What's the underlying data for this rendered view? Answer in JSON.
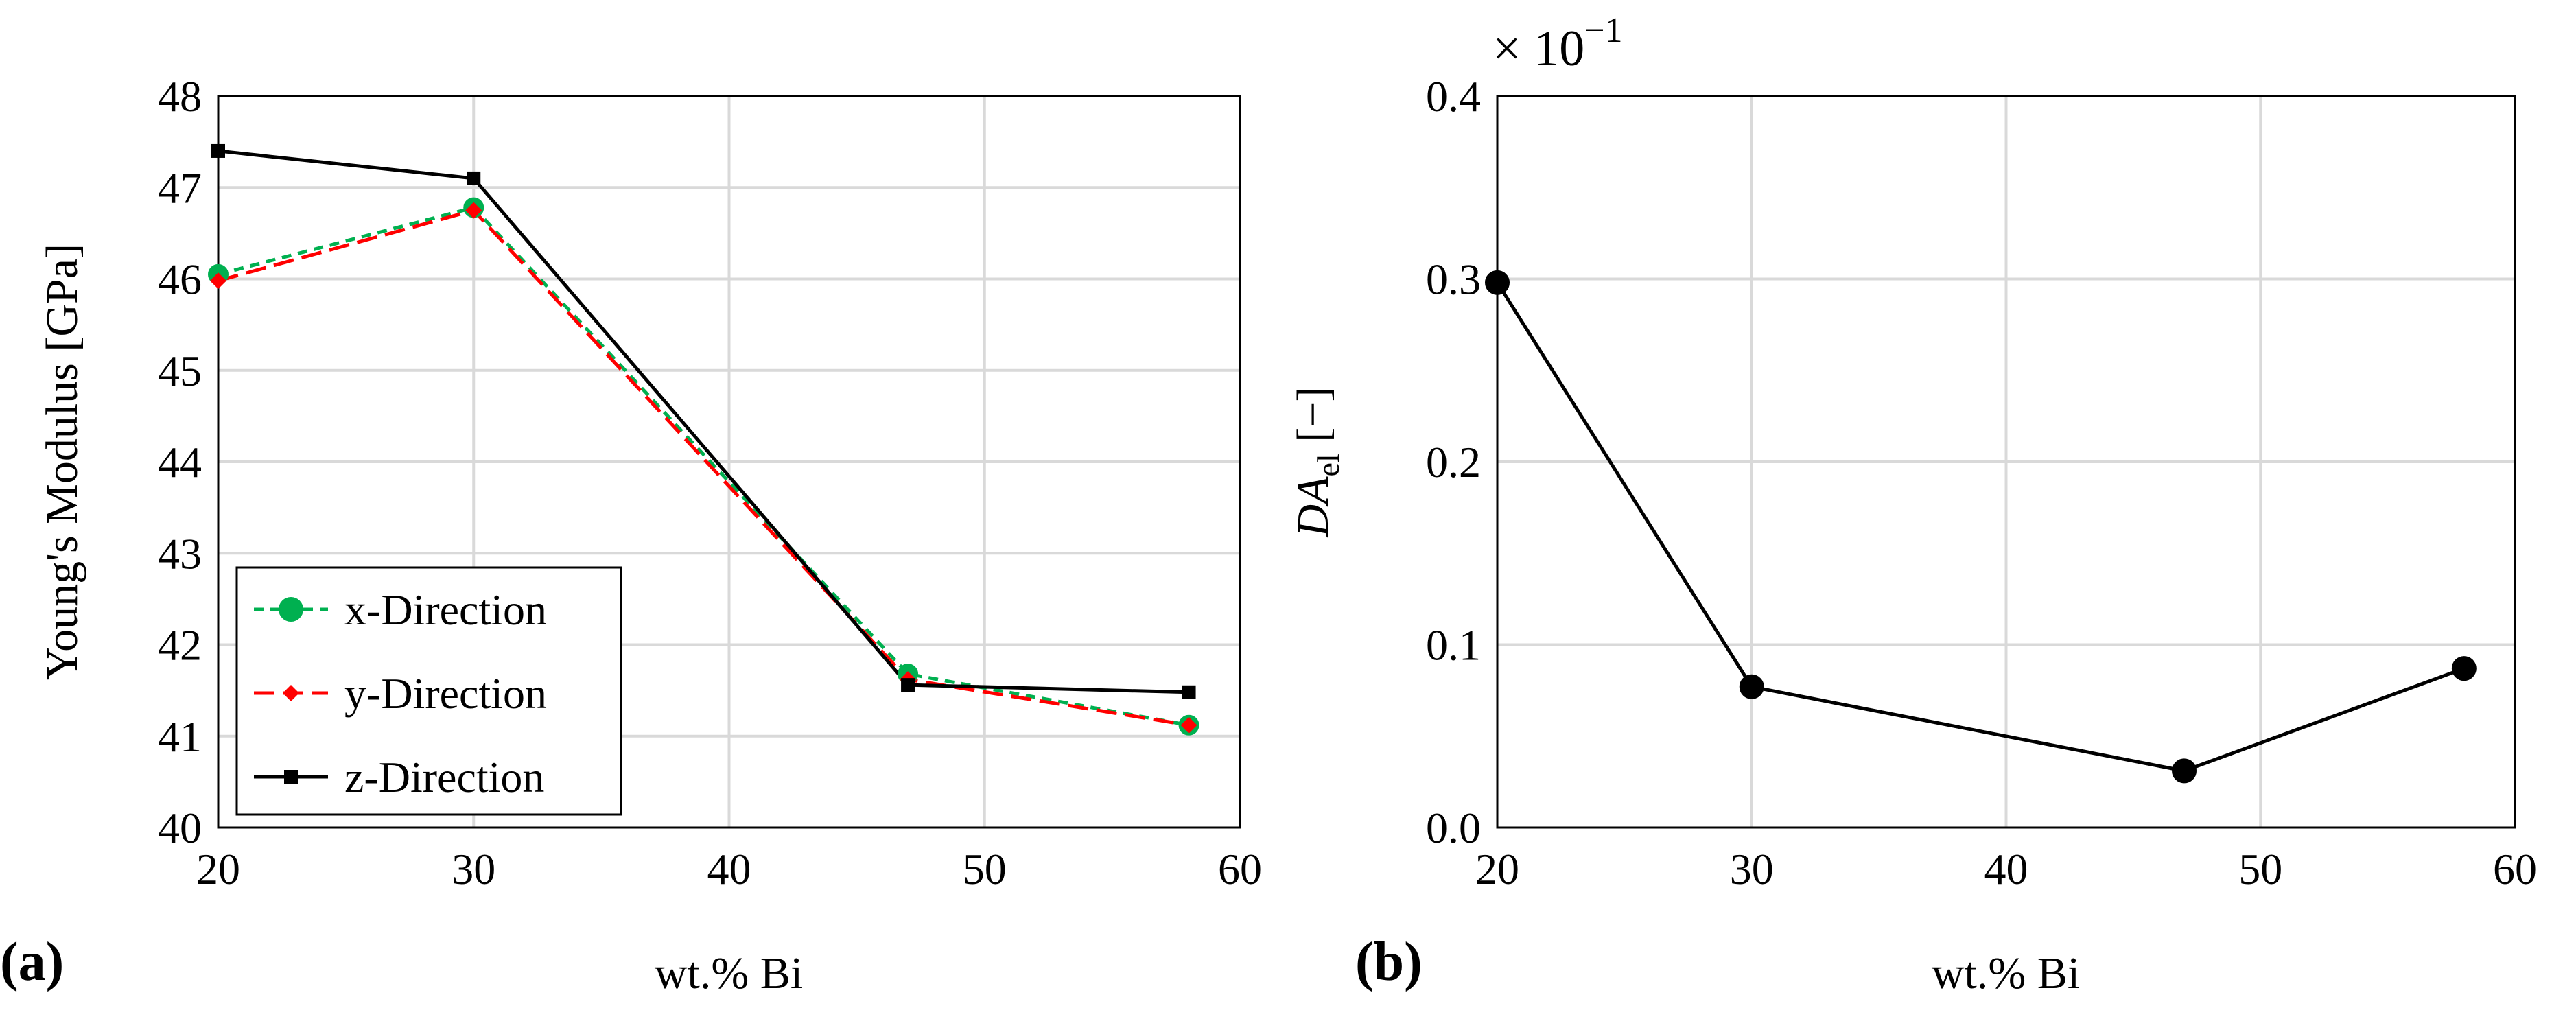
{
  "chart_data": [
    {
      "panel": "(a)",
      "type": "line",
      "xlabel": "wt.% Bi",
      "ylabel": "Young's Modulus [GPa]",
      "xlim": [
        20,
        60
      ],
      "ylim": [
        40,
        48
      ],
      "xticks": [
        "20",
        "30",
        "40",
        "50",
        "60"
      ],
      "yticks": [
        "40",
        "41",
        "42",
        "43",
        "44",
        "45",
        "46",
        "47",
        "48"
      ],
      "grid": true,
      "legend": "bottom-left",
      "series": [
        {
          "name": "x-Direction",
          "x": [
            20,
            30,
            47,
            58
          ],
          "y": [
            46.05,
            46.78,
            41.68,
            41.12
          ],
          "color": "#00b050",
          "marker": "circle",
          "dash": "14 10"
        },
        {
          "name": "y-Direction",
          "x": [
            20,
            30,
            47,
            58
          ],
          "y": [
            45.98,
            46.75,
            41.62,
            41.12
          ],
          "color": "#ff0000",
          "marker": "diamond",
          "dash": "30 12"
        },
        {
          "name": "z-Direction",
          "x": [
            20,
            30,
            47,
            58
          ],
          "y": [
            47.4,
            47.1,
            41.56,
            41.48
          ],
          "color": "#000000",
          "marker": "square",
          "dash": ""
        }
      ]
    },
    {
      "panel": "(b)",
      "type": "line",
      "xlabel": "wt.% Bi",
      "ylabel_main": "DA",
      "ylabel_sub": "el",
      "ylabel_unit": " [−]",
      "multiplier_base": "× 10",
      "multiplier_exp": "−1",
      "xlim": [
        20,
        60
      ],
      "ylim": [
        0.0,
        0.4
      ],
      "xticks": [
        "20",
        "30",
        "40",
        "50",
        "60"
      ],
      "yticks": [
        "0.0",
        "0.1",
        "0.2",
        "0.3",
        "0.4"
      ],
      "grid": true,
      "series": [
        {
          "name": "DA_el",
          "x": [
            20,
            30,
            47,
            58
          ],
          "y": [
            0.298,
            0.077,
            0.031,
            0.087
          ],
          "color": "#000000",
          "marker": "circle"
        }
      ]
    }
  ]
}
